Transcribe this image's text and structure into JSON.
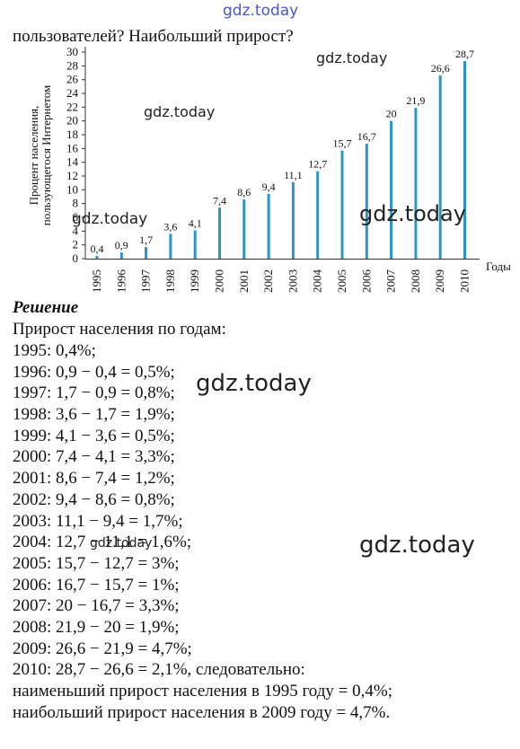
{
  "watermarks": [
    "gdz.today",
    "gdz.today",
    "gdz.today",
    "gdz.today",
    "gdz.today",
    "gdz.today",
    "gdz.today",
    "gdz.today"
  ],
  "question": "пользователей? Наибольший прирост?",
  "chart_data": {
    "type": "bar",
    "ylabel": "Процент населения, пользующегося Интернетом",
    "xlabel": "Годы",
    "categories": [
      "1995",
      "1996",
      "1997",
      "1998",
      "1999",
      "2000",
      "2001",
      "2002",
      "2003",
      "2004",
      "2005",
      "2006",
      "2007",
      "2008",
      "2009",
      "2010"
    ],
    "values": [
      0.4,
      0.9,
      1.7,
      3.6,
      4.1,
      7.4,
      8.6,
      9.4,
      11.1,
      12.7,
      15.7,
      16.7,
      20,
      21.9,
      26.6,
      28.7
    ],
    "value_labels": [
      "0,4",
      "0,9",
      "1,7",
      "3,6",
      "4,1",
      "7,4",
      "8,6",
      "9,4",
      "11,1",
      "12,7",
      "15,7",
      "16,7",
      "20",
      "21,9",
      "26,6",
      "28,7"
    ],
    "yticks": [
      0,
      2,
      4,
      6,
      8,
      10,
      12,
      14,
      16,
      18,
      20,
      22,
      24,
      26,
      28,
      30
    ],
    "ylim": [
      0,
      30
    ],
    "bar_color": "#2b95c8",
    "grid": false
  },
  "solution": {
    "heading": "Решение",
    "intro": "Прирост населения по годам:",
    "lines": [
      "1995: 0,4%;",
      "1996: 0,9 − 0,4 = 0,5%;",
      "1997: 1,7 − 0,9 = 0,8%;",
      "1998: 3,6 − 1,7 = 1,9%;",
      "1999: 4,1 − 3,6 = 0,5%;",
      "2000: 7,4 − 4,1 = 3,3%;",
      "2001: 8,6 − 7,4 = 1,2%;",
      "2002: 9,4 − 8,6 = 0,8%;",
      "2003: 11,1 − 9,4 = 1,7%;",
      "2004: 12,7 − 11,1 = 1,6%;",
      "2005: 15,7 − 12,7 = 3%;",
      "2006: 16,7 − 15,7 = 1%;",
      "2007: 20 − 16,7 = 3,3%;",
      "2008: 21,9 − 20 = 1,9%;",
      "2009: 26,6 − 21,9 = 4,7%;",
      "2010: 28,7 − 26,6 = 2,1%, следовательно:",
      "наименьший прирост населения в 1995 году = 0,4%;",
      "наибольший прирост населения в 2009 году = 4,7%."
    ]
  }
}
